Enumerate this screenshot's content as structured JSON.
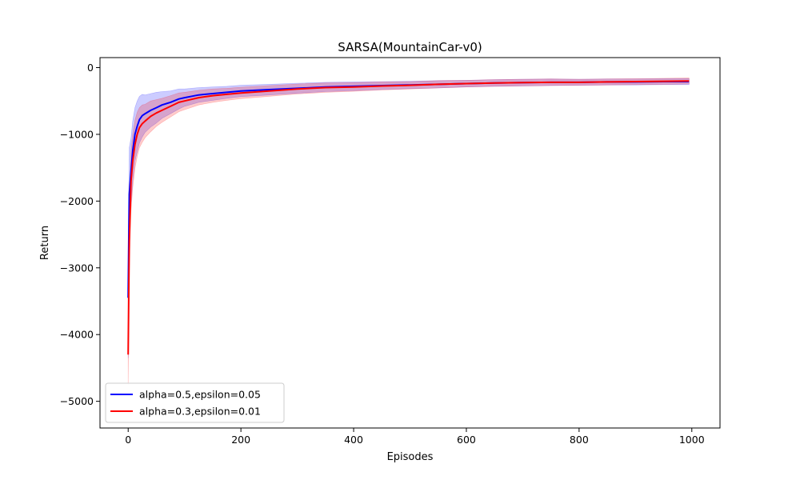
{
  "chart_data": {
    "type": "line",
    "title": "SARSA(MountainCar-v0)",
    "xlabel": "Episodes",
    "ylabel": "Return",
    "xlim": [
      -50,
      1050
    ],
    "ylim": [
      -5400,
      150
    ],
    "xticks": [
      0,
      200,
      400,
      600,
      800,
      1000
    ],
    "yticks": [
      0,
      -1000,
      -2000,
      -3000,
      -4000,
      -5000
    ],
    "xtick_labels": [
      "0",
      "200",
      "400",
      "600",
      "800",
      "1000"
    ],
    "ytick_labels": [
      "0",
      "−1000",
      "−2000",
      "−3000",
      "−4000",
      "−5000"
    ],
    "grid": false,
    "legend_position": "bottom-left",
    "shaded_band": true,
    "series": [
      {
        "name": "alpha=0.5,epsilon=0.05",
        "color": "#0000ff",
        "x": [
          0,
          2,
          5,
          8,
          12,
          16,
          20,
          25,
          30,
          40,
          50,
          60,
          75,
          90,
          100,
          125,
          150,
          175,
          200,
          250,
          300,
          350,
          400,
          450,
          500,
          550,
          600,
          650,
          700,
          750,
          800,
          850,
          900,
          950,
          995
        ],
        "y": [
          -3450,
          -1900,
          -1550,
          -1250,
          -1000,
          -880,
          -780,
          -720,
          -690,
          -640,
          -600,
          -560,
          -520,
          -470,
          -450,
          -410,
          -390,
          -370,
          -350,
          -330,
          -310,
          -290,
          -280,
          -270,
          -260,
          -250,
          -240,
          -230,
          -225,
          -220,
          -220,
          -215,
          -215,
          -210,
          -210
        ],
        "band": [
          900,
          700,
          500,
          450,
          400,
          380,
          350,
          320,
          280,
          250,
          230,
          200,
          170,
          150,
          130,
          110,
          100,
          90,
          85,
          80,
          75,
          70,
          65,
          60,
          55,
          55,
          50,
          50,
          50,
          50,
          45,
          45,
          45,
          45,
          45
        ]
      },
      {
        "name": "alpha=0.3,epsilon=0.01",
        "color": "#ff0000",
        "x": [
          0,
          2,
          5,
          8,
          12,
          16,
          20,
          25,
          30,
          40,
          50,
          60,
          75,
          90,
          100,
          125,
          150,
          175,
          200,
          250,
          300,
          350,
          400,
          450,
          500,
          550,
          600,
          650,
          700,
          750,
          800,
          850,
          900,
          950,
          995
        ],
        "y": [
          -4300,
          -2600,
          -1700,
          -1400,
          -1150,
          -1000,
          -900,
          -840,
          -800,
          -730,
          -680,
          -640,
          -580,
          -520,
          -500,
          -450,
          -420,
          -400,
          -380,
          -350,
          -320,
          -300,
          -290,
          -275,
          -265,
          -250,
          -240,
          -230,
          -225,
          -220,
          -220,
          -215,
          -210,
          -205,
          -200
        ],
        "band": [
          450,
          500,
          450,
          400,
          360,
          330,
          300,
          280,
          250,
          230,
          200,
          180,
          160,
          140,
          130,
          110,
          100,
          90,
          85,
          80,
          75,
          70,
          65,
          60,
          55,
          55,
          50,
          50,
          50,
          50,
          45,
          45,
          45,
          45,
          45
        ]
      }
    ]
  }
}
